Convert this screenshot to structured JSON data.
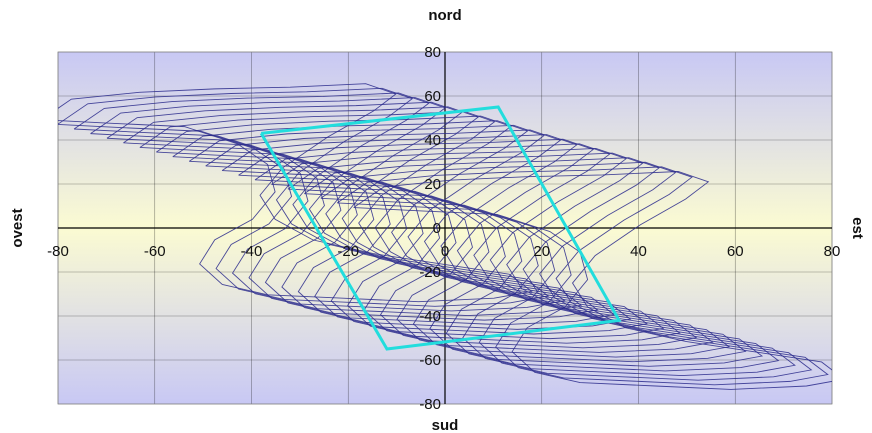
{
  "chart_data": {
    "type": "line",
    "title_top": "nord",
    "title_bottom": "sud",
    "label_left": "ovest",
    "label_right": "est",
    "xlim": [
      -80,
      80
    ],
    "ylim": [
      -80,
      80
    ],
    "x_ticks": [
      -80,
      -60,
      -40,
      -20,
      0,
      20,
      40,
      60,
      80
    ],
    "y_ticks": [
      80,
      60,
      40,
      20,
      0,
      -20,
      -40,
      -60,
      -80
    ],
    "x_tick_labels": [
      "-80",
      "-60",
      "-40",
      "-20",
      "0",
      "20",
      "40",
      "60",
      "80"
    ],
    "y_tick_labels": [
      "80",
      "60",
      "40",
      "20",
      "0",
      "-20",
      "-40",
      "-60",
      "-80"
    ],
    "grid": true,
    "background": "vertical gradient: lavender at top and bottom, pale yellow at center",
    "colors": {
      "curves": "#2a2a8c",
      "highlight": "#22dddd",
      "bg_edge": "#c8c8f4",
      "bg_center": "#fbfbd2",
      "grid": "#000000"
    },
    "series": [
      {
        "points": [
          [
            -38,
            43
          ],
          [
            11,
            55
          ],
          [
            36,
            -42
          ],
          [
            -12,
            -55
          ],
          [
            -38,
            43
          ]
        ]
      }
    ],
    "curve_family": {
      "count": 20,
      "shift_x_start": -32,
      "shift_x_step": 3.4,
      "shift_y_start": 18,
      "shift_y_step": -2.1,
      "base_shape": [
        [
          -66,
          40
        ],
        [
          -58,
          52
        ],
        [
          -40,
          56
        ],
        [
          -20,
          58
        ],
        [
          0,
          59
        ],
        [
          20,
          61
        ],
        [
          28,
          55
        ],
        [
          22,
          45
        ],
        [
          10,
          30
        ],
        [
          -2,
          12
        ],
        [
          -8,
          -4
        ],
        [
          -4,
          -18
        ],
        [
          6,
          -30
        ],
        [
          22,
          -38
        ],
        [
          40,
          -44
        ],
        [
          58,
          -50
        ],
        [
          64,
          -60
        ],
        [
          54,
          -64
        ],
        [
          34,
          -66
        ],
        [
          14,
          -64
        ],
        [
          -6,
          -62
        ],
        [
          -18,
          -56
        ],
        [
          -24,
          -44
        ],
        [
          -20,
          -30
        ],
        [
          -10,
          -18
        ],
        [
          -4,
          -2
        ],
        [
          -6,
          14
        ],
        [
          -14,
          26
        ],
        [
          -28,
          36
        ],
        [
          -48,
          38
        ],
        [
          -66,
          40
        ]
      ]
    }
  }
}
